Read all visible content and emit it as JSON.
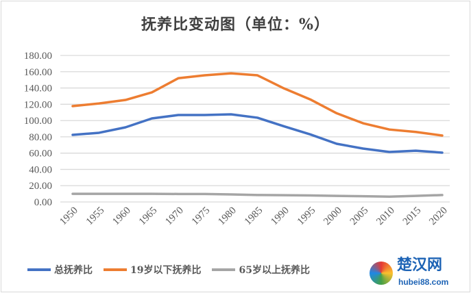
{
  "chart_data": {
    "type": "line",
    "title": "抚养比变动图（单位：%）",
    "x": [
      1950,
      1955,
      1960,
      1965,
      1970,
      1975,
      1980,
      1985,
      1990,
      1995,
      2000,
      2005,
      2010,
      2015,
      2020
    ],
    "ylim": [
      0,
      180
    ],
    "yticks": [
      "0.00",
      "20.00",
      "40.00",
      "60.00",
      "80.00",
      "100.00",
      "120.00",
      "140.00",
      "160.00",
      "180.00"
    ],
    "grid": true,
    "legend_position": "bottom",
    "series": [
      {
        "name": "总抚养比",
        "color": "#4472c4",
        "values": [
          82.4,
          85.0,
          91.7,
          102.6,
          106.8,
          106.8,
          107.7,
          103.5,
          93.0,
          83.0,
          71.5,
          65.6,
          61.4,
          63.0,
          60.6
        ]
      },
      {
        "name": "19岁以下抚养比",
        "color": "#ed7d31",
        "values": [
          117.8,
          121.0,
          125.3,
          134.6,
          152.0,
          155.6,
          158.0,
          155.6,
          139.6,
          126.0,
          109.0,
          96.7,
          89.0,
          86.0,
          81.6
        ]
      },
      {
        "name": "65岁以上抚养比",
        "color": "#a5a5a5",
        "values": [
          10.0,
          10.0,
          10.0,
          10.0,
          9.8,
          9.8,
          9.3,
          8.5,
          8.3,
          8.0,
          7.5,
          7.0,
          6.5,
          7.5,
          8.5
        ]
      }
    ]
  },
  "watermark": {
    "cn": "楚汉网",
    "en": "hubei88.com"
  }
}
